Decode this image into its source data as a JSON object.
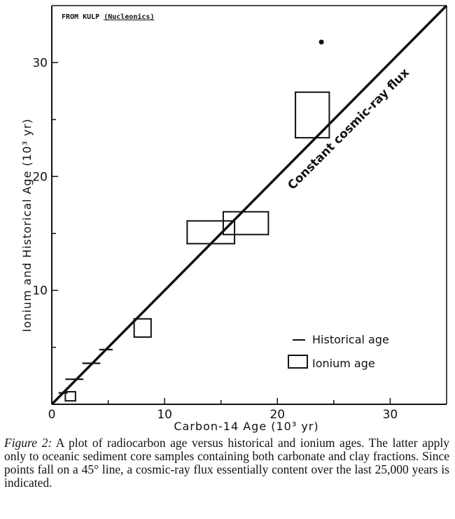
{
  "source_note": {
    "prefix": "FROM KULP",
    "journal": "(Nucleonics)"
  },
  "chart_data": {
    "type": "scatter",
    "xlabel": "Carbon-14 Age (10³ yr)",
    "ylabel": "Ionium and Historical Age (10³ yr)",
    "xlim": [
      0,
      35
    ],
    "ylim": [
      0,
      35
    ],
    "x_ticks": [
      0,
      10,
      20,
      30
    ],
    "y_ticks": [
      10,
      20,
      30
    ],
    "grid": false,
    "legend_position": "bottom-right",
    "reference_line": {
      "label": "Constant cosmic-ray flux",
      "slope": 1,
      "intercept": 0
    },
    "legend": [
      {
        "key": "historical",
        "label": "Historical age",
        "marker": "dash"
      },
      {
        "key": "ionium",
        "label": "Ionium age",
        "marker": "box"
      }
    ],
    "series": [
      {
        "name": "Historical age",
        "marker": "dash",
        "points": [
          {
            "x": 1.0,
            "y": 1.0,
            "half_width": 0.4
          },
          {
            "x": 2.0,
            "y": 2.2,
            "half_width": 0.8
          },
          {
            "x": 3.5,
            "y": 3.6,
            "half_width": 0.8
          },
          {
            "x": 4.8,
            "y": 4.8,
            "half_width": 0.6
          }
        ]
      },
      {
        "name": "Ionium age",
        "marker": "box",
        "boxes": [
          {
            "x0": 1.2,
            "x1": 2.1,
            "y0": 0.3,
            "y1": 1.1
          },
          {
            "x0": 7.3,
            "x1": 8.8,
            "y0": 5.9,
            "y1": 7.5
          },
          {
            "x0": 12.0,
            "x1": 16.2,
            "y0": 14.1,
            "y1": 16.1
          },
          {
            "x0": 15.2,
            "x1": 19.2,
            "y0": 14.9,
            "y1": 16.9
          },
          {
            "x0": 21.6,
            "x1": 24.6,
            "y0": 23.4,
            "y1": 27.4
          }
        ]
      }
    ],
    "stray_point": {
      "x": 23.9,
      "y": 31.8
    }
  },
  "caption": {
    "label": "Figure 2:",
    "text": "A plot of radiocarbon age versus historical and ionium ages. The latter apply only to oceanic sediment core samples containing both carbonate and clay fractions. Since points fall on a 45° line, a cosmic-ray flux essentially content over the last 25,000 years is indicated."
  }
}
